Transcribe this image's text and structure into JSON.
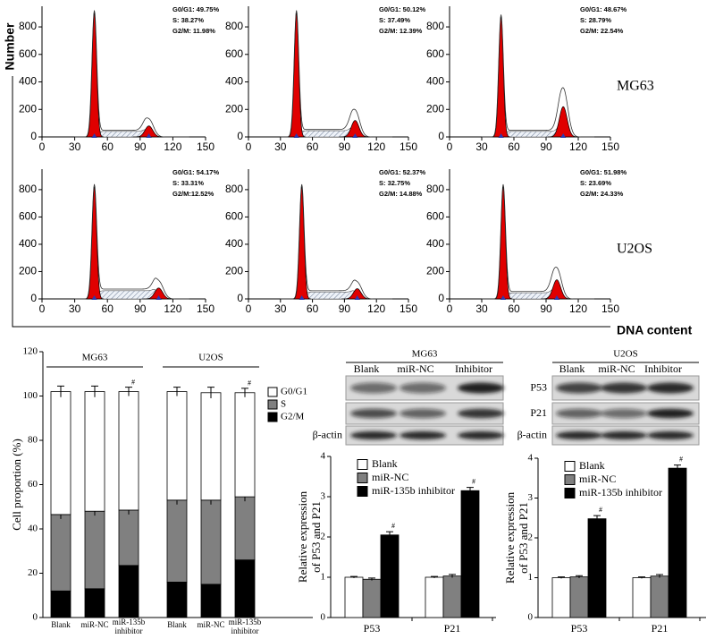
{
  "chart_data": [
    {
      "type": "flow",
      "ylabel": "Number",
      "annotation": [
        "G0/G1: 49.75%",
        "S: 38.27%",
        "G2/M: 11.98%"
      ],
      "x": [
        48,
        98
      ],
      "values": [
        900,
        80
      ],
      "s_level": 40,
      "color": "#e00000",
      "xlim": [
        0,
        150
      ],
      "xticks": [
        0,
        30,
        60,
        90,
        120,
        150
      ],
      "ylim": [
        0,
        950
      ],
      "yticks": [
        0,
        200,
        400,
        600,
        800
      ]
    },
    {
      "type": "flow",
      "annotation": [
        "G0/G1: 50.12%",
        "S: 37.49%",
        "G2/M: 12.39%"
      ],
      "x": [
        45,
        100
      ],
      "values": [
        900,
        120
      ],
      "s_level": 45,
      "color": "#e00000",
      "xlim": [
        0,
        150
      ],
      "xticks": [
        0,
        30,
        60,
        90,
        120,
        150
      ],
      "ylim": [
        0,
        950
      ],
      "yticks": [
        0,
        200,
        400,
        600,
        800
      ]
    },
    {
      "type": "flow",
      "row_label": "MG63",
      "annotation": [
        "G0/G1: 48.67%",
        "S: 28.79%",
        "G2/M: 22.54%"
      ],
      "x": [
        48,
        106
      ],
      "values": [
        870,
        220
      ],
      "s_level": 40,
      "color": "#e00000",
      "xlim": [
        0,
        150
      ],
      "xticks": [
        0,
        30,
        60,
        90,
        120,
        150
      ],
      "ylim": [
        0,
        950
      ],
      "yticks": [
        0,
        200,
        400,
        600,
        800
      ]
    },
    {
      "type": "flow",
      "annotation": [
        "G0/G1: 54.17%",
        "S: 33.31%",
        "G2/M:12.52%"
      ],
      "x": [
        48,
        107
      ],
      "values": [
        820,
        80
      ],
      "s_level": 60,
      "color": "#e00000",
      "xlim": [
        0,
        150
      ],
      "xticks": [
        0,
        30,
        60,
        90,
        120,
        150
      ],
      "ylim": [
        0,
        950
      ],
      "yticks": [
        0,
        200,
        400,
        600,
        800
      ]
    },
    {
      "type": "flow",
      "annotation": [
        "G0/G1: 52.37%",
        "S: 32.75%",
        "G2/M: 14.88%"
      ],
      "x": [
        50,
        102
      ],
      "values": [
        820,
        75
      ],
      "s_level": 50,
      "color": "#e00000",
      "xlim": [
        0,
        150
      ],
      "xticks": [
        0,
        30,
        60,
        90,
        120,
        150
      ],
      "ylim": [
        0,
        950
      ],
      "yticks": [
        0,
        200,
        400,
        600,
        800
      ]
    },
    {
      "type": "flow",
      "row_label": "U2OS",
      "xlabel": "DNA content",
      "annotation": [
        "G0/G1: 51.98%",
        "S: 23.69%",
        "G2/M: 24.33%"
      ],
      "x": [
        50,
        100
      ],
      "values": [
        820,
        140
      ],
      "s_level": 45,
      "color": "#e00000",
      "xlim": [
        0,
        150
      ],
      "xticks": [
        0,
        30,
        60,
        90,
        120,
        150
      ],
      "ylim": [
        0,
        950
      ],
      "yticks": [
        0,
        200,
        400,
        600,
        800
      ]
    },
    {
      "type": "stacked_bar",
      "ylabel": "Cell proportion (%)",
      "groups": [
        "MG63",
        "U2OS"
      ],
      "categories": [
        "Blank",
        "miR-NC",
        "miR-135b inhibitor",
        "Blank",
        "miR-NC",
        "miR-135b inhibitor"
      ],
      "series": [
        {
          "name": "G2/M",
          "color": "#000000",
          "values": [
            12,
            13,
            23.5,
            16,
            15,
            26
          ],
          "errors": [
            1,
            1,
            1.2,
            1,
            1,
            1.5
          ]
        },
        {
          "name": "S",
          "color": "#808080",
          "values": [
            34.5,
            35,
            25,
            37,
            38,
            28.5
          ],
          "errors": [
            2,
            2,
            2,
            2,
            2,
            2
          ]
        },
        {
          "name": "G0/G1",
          "color": "#ffffff",
          "values": [
            55.5,
            54,
            53.5,
            49,
            48.5,
            47
          ],
          "errors": [
            2.5,
            2.5,
            2,
            2,
            2.5,
            2
          ],
          "markers": [
            null,
            null,
            "#",
            null,
            null,
            "#"
          ]
        }
      ],
      "ylim": [
        0,
        120
      ],
      "yticks": [
        0,
        20,
        40,
        60,
        80,
        100,
        120
      ]
    },
    {
      "type": "bar",
      "ylabel": [
        "Relative expression",
        "of P53 and P21"
      ],
      "categories": [
        "P53",
        "P21"
      ],
      "series": [
        {
          "name": "Blank",
          "color": "#ffffff",
          "values": [
            1,
            1
          ],
          "errors": [
            0.02,
            0.02
          ]
        },
        {
          "name": "miR-NC",
          "color": "#808080",
          "values": [
            0.95,
            1.03
          ],
          "errors": [
            0.03,
            0.04
          ]
        },
        {
          "name": "miR-135b inhibitor",
          "color": "#000000",
          "values": [
            2.05,
            3.15
          ],
          "errors": [
            0.08,
            0.08
          ],
          "markers": [
            "#",
            "#"
          ]
        }
      ],
      "ylim": [
        0,
        4
      ],
      "yticks": [
        0,
        1,
        2,
        3,
        4
      ]
    },
    {
      "type": "bar",
      "ylabel": [
        "Relative expression",
        "of P53 and P21"
      ],
      "categories": [
        "P53",
        "P21"
      ],
      "series": [
        {
          "name": "Blank",
          "color": "#ffffff",
          "values": [
            1,
            1
          ],
          "errors": [
            0.02,
            0.02
          ]
        },
        {
          "name": "miR-NC",
          "color": "#808080",
          "values": [
            1.02,
            1.04
          ],
          "errors": [
            0.03,
            0.04
          ]
        },
        {
          "name": "miR-135b inhibitor",
          "color": "#000000",
          "values": [
            2.48,
            3.75
          ],
          "errors": [
            0.08,
            0.08
          ],
          "markers": [
            "#",
            "#"
          ]
        }
      ],
      "ylim": [
        0,
        4
      ],
      "yticks": [
        0,
        1,
        2,
        3,
        4
      ]
    }
  ],
  "blots": [
    {
      "title": "MG63",
      "lanes": [
        "Blank",
        "miR-NC",
        "Inhibitor"
      ],
      "rows": [
        null,
        null,
        "β-actin"
      ]
    },
    {
      "title": "U2OS",
      "lanes": [
        "Blank",
        "miR-NC",
        "Inhibitor"
      ],
      "rows": [
        "P53",
        "P21",
        "β-actin"
      ]
    }
  ]
}
